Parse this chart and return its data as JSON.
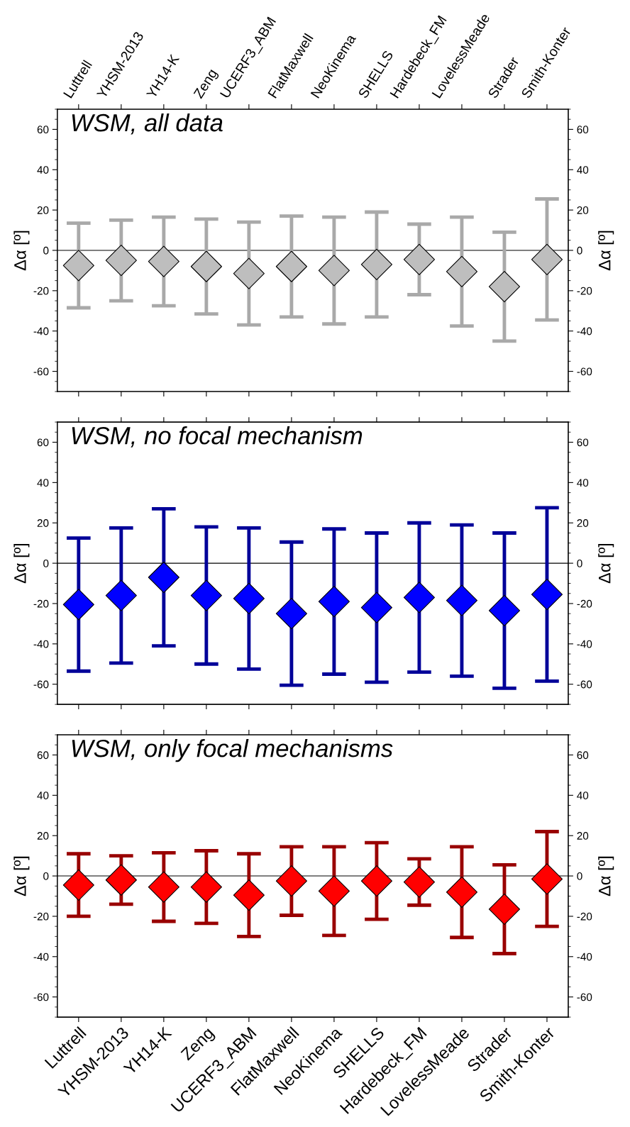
{
  "chart_data": [
    {
      "type": "scatter",
      "title": "WSM, all data",
      "ylabel": "Δα [º]",
      "y2label": "Δα [º]",
      "categories": [
        "Luttrell",
        "YHSM-2013",
        "YH14-K",
        "Zeng",
        "UCERF3_ABM",
        "FlatMaxwell",
        "NeoKinema",
        "SHELLS",
        "Hardebeck_FM",
        "LovelessMeade",
        "Strader",
        "Smith-Konter"
      ],
      "series": [
        {
          "color": "#bebebe",
          "values": [
            -7.5,
            -5,
            -5.5,
            -8,
            -11.5,
            -8,
            -10,
            -7,
            -4.5,
            -10.5,
            -18,
            -4.5
          ],
          "errors": [
            21,
            20,
            22,
            23.5,
            25.5,
            25,
            26.5,
            26,
            17.5,
            27,
            27,
            30
          ]
        }
      ],
      "ylim": [
        -70,
        70
      ],
      "yticks": [
        -60,
        -40,
        -20,
        0,
        20,
        40,
        60
      ],
      "y2lim": [
        -70,
        70
      ],
      "y2ticks": [
        -60,
        -40,
        -20,
        0,
        20,
        40,
        60
      ],
      "ref_lines": [
        {
          "axis": "y",
          "value": 0,
          "color": "#000000"
        }
      ],
      "marker": "diamond",
      "grid": false,
      "legend": false
    },
    {
      "type": "scatter",
      "title": "WSM, no focal mechanism",
      "ylabel": "Δα [º]",
      "y2label": "Δα [º]",
      "categories": [
        null,
        null,
        null,
        null,
        null,
        null,
        null,
        null,
        null,
        null,
        null,
        null
      ],
      "series": [
        {
          "color": "#0000ff",
          "values": [
            -20.5,
            -16,
            -7,
            -16,
            -17.5,
            -25,
            -19,
            -22,
            -17,
            -18.5,
            -23.5,
            -15.5
          ],
          "errors": [
            33,
            33.5,
            34,
            34,
            35,
            35.5,
            36,
            37,
            37,
            37.5,
            38.5,
            43
          ]
        }
      ],
      "ylim": [
        -70,
        70
      ],
      "yticks": [
        -60,
        -40,
        -20,
        0,
        20,
        40,
        60
      ],
      "y2lim": [
        -70,
        70
      ],
      "y2ticks": [
        -60,
        -40,
        -20,
        0,
        20,
        40,
        60
      ],
      "ref_lines": [
        {
          "axis": "y",
          "value": 0,
          "color": "#000000"
        }
      ],
      "marker": "diamond",
      "grid": false,
      "legend": false,
      "tick_labels": "y"
    },
    {
      "type": "scatter",
      "title": "WSM, only focal mechanisms",
      "ylabel": "Δα [º]",
      "y2label": "Δα [º]",
      "categories": [
        "Luttrell",
        "YHSM-2013",
        "YH14-K",
        "Zeng",
        "UCERF3_ABM",
        "FlatMaxwell",
        "NeoKinema",
        "SHELLS",
        "Hardebeck_FM",
        "LovelessMeade",
        "Strader",
        "Smith-Konter"
      ],
      "series": [
        {
          "color": "#ff0000",
          "values": [
            -4.5,
            -2,
            -5.5,
            -5.5,
            -9.5,
            -2.5,
            -7.5,
            -2.5,
            -3,
            -8,
            -16.5,
            -1.5
          ],
          "errors": [
            15.5,
            12,
            17,
            18,
            20.5,
            17,
            22,
            19,
            11.5,
            22.5,
            22,
            23.5
          ]
        }
      ],
      "ylim": [
        -70,
        70
      ],
      "yticks": [
        -60,
        -40,
        -20,
        0,
        20,
        40,
        60
      ],
      "y2lim": [
        -70,
        70
      ],
      "y2ticks": [
        -60,
        -40,
        -20,
        0,
        20,
        40,
        60
      ],
      "ref_lines": [
        {
          "axis": "y",
          "value": 0,
          "color": "#000000"
        }
      ],
      "marker": "diamond",
      "grid": false,
      "legend": false
    }
  ]
}
